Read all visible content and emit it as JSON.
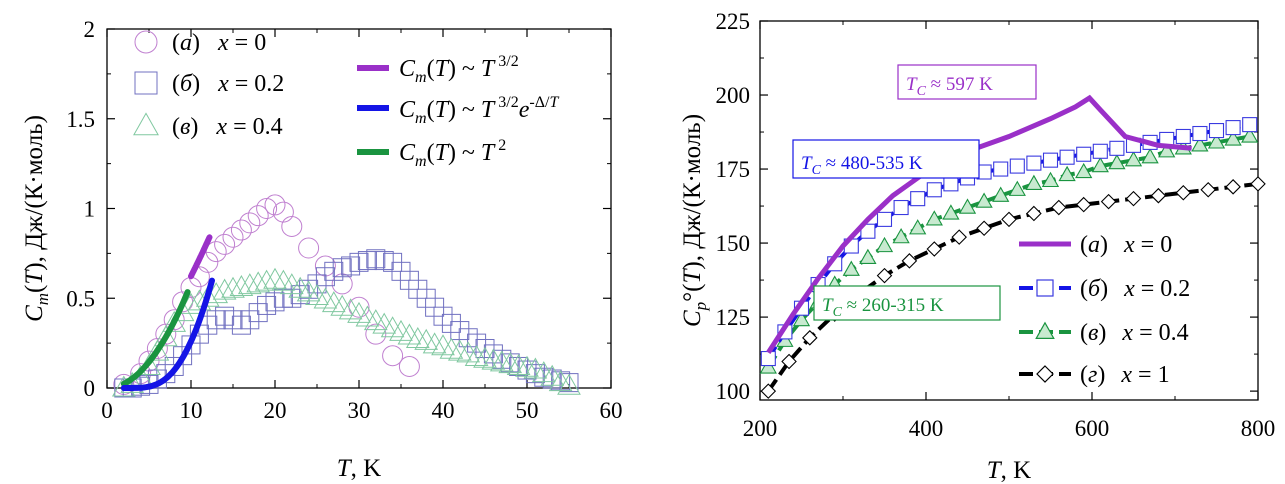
{
  "chart_data": [
    {
      "type": "scatter",
      "xlabel": "T, K",
      "ylabel": "C_m(T), Дж/(К·моль)",
      "xlim": [
        0,
        60
      ],
      "ylim": [
        0,
        2
      ],
      "xticks": [
        "0",
        "10",
        "20",
        "30",
        "40",
        "50",
        "60"
      ],
      "yticks": [
        "0",
        "0.5",
        "1",
        "1.5",
        "2"
      ],
      "legend_position": "top-left",
      "series": [
        {
          "name": "(а)  x = 0",
          "marker": "circle",
          "color": "#c080d0",
          "points": [
            [
              2,
              0.02
            ],
            [
              4,
              0.08
            ],
            [
              5,
              0.15
            ],
            [
              6,
              0.22
            ],
            [
              7,
              0.3
            ],
            [
              8,
              0.38
            ],
            [
              9,
              0.48
            ],
            [
              10,
              0.56
            ],
            [
              11,
              0.62
            ],
            [
              12,
              0.7
            ],
            [
              13,
              0.76
            ],
            [
              14,
              0.8
            ],
            [
              15,
              0.84
            ],
            [
              16,
              0.88
            ],
            [
              17,
              0.92
            ],
            [
              18,
              0.96
            ],
            [
              19,
              1.0
            ],
            [
              20,
              1.02
            ],
            [
              21,
              0.98
            ],
            [
              22,
              0.9
            ],
            [
              24,
              0.78
            ],
            [
              26,
              0.68
            ],
            [
              28,
              0.58
            ],
            [
              30,
              0.45
            ],
            [
              32,
              0.3
            ],
            [
              34,
              0.18
            ],
            [
              36,
              0.12
            ]
          ]
        },
        {
          "name": "(б)  x = 0.2",
          "marker": "square",
          "color": "#7070c0",
          "points": [
            [
              2,
              0.0
            ],
            [
              3,
              0.0
            ],
            [
              4,
              0.01
            ],
            [
              5,
              0.02
            ],
            [
              6,
              0.05
            ],
            [
              7,
              0.08
            ],
            [
              8,
              0.12
            ],
            [
              9,
              0.18
            ],
            [
              10,
              0.24
            ],
            [
              11,
              0.3
            ],
            [
              12,
              0.35
            ],
            [
              13,
              0.38
            ],
            [
              14,
              0.4
            ],
            [
              15,
              0.38
            ],
            [
              16,
              0.35
            ],
            [
              17,
              0.38
            ],
            [
              18,
              0.42
            ],
            [
              19,
              0.46
            ],
            [
              20,
              0.48
            ],
            [
              21,
              0.5
            ],
            [
              22,
              0.5
            ],
            [
              23,
              0.52
            ],
            [
              24,
              0.55
            ],
            [
              25,
              0.58
            ],
            [
              26,
              0.62
            ],
            [
              27,
              0.65
            ],
            [
              28,
              0.67
            ],
            [
              29,
              0.68
            ],
            [
              30,
              0.7
            ],
            [
              31,
              0.71
            ],
            [
              32,
              0.72
            ],
            [
              33,
              0.71
            ],
            [
              34,
              0.7
            ],
            [
              35,
              0.65
            ],
            [
              36,
              0.6
            ],
            [
              37,
              0.55
            ],
            [
              38,
              0.5
            ],
            [
              39,
              0.45
            ],
            [
              40,
              0.4
            ],
            [
              41,
              0.36
            ],
            [
              42,
              0.32
            ],
            [
              43,
              0.28
            ],
            [
              44,
              0.25
            ],
            [
              45,
              0.22
            ],
            [
              46,
              0.19
            ],
            [
              47,
              0.16
            ],
            [
              48,
              0.14
            ],
            [
              49,
              0.12
            ],
            [
              50,
              0.1
            ],
            [
              51,
              0.08
            ],
            [
              52,
              0.06
            ],
            [
              53,
              0.05
            ],
            [
              54,
              0.04
            ],
            [
              55,
              0.03
            ]
          ]
        },
        {
          "name": "(в)  x = 0.4",
          "marker": "triangle",
          "color": "#80c8a0",
          "points": [
            [
              2,
              0.0
            ],
            [
              3,
              0.02
            ],
            [
              4,
              0.06
            ],
            [
              5,
              0.12
            ],
            [
              6,
              0.2
            ],
            [
              7,
              0.28
            ],
            [
              8,
              0.36
            ],
            [
              9,
              0.42
            ],
            [
              10,
              0.46
            ],
            [
              11,
              0.48
            ],
            [
              12,
              0.5
            ],
            [
              13,
              0.52
            ],
            [
              14,
              0.54
            ],
            [
              15,
              0.55
            ],
            [
              16,
              0.56
            ],
            [
              17,
              0.57
            ],
            [
              18,
              0.58
            ],
            [
              19,
              0.59
            ],
            [
              20,
              0.6
            ],
            [
              21,
              0.59
            ],
            [
              22,
              0.57
            ],
            [
              23,
              0.55
            ],
            [
              24,
              0.53
            ],
            [
              25,
              0.51
            ],
            [
              26,
              0.49
            ],
            [
              27,
              0.47
            ],
            [
              28,
              0.45
            ],
            [
              29,
              0.43
            ],
            [
              30,
              0.41
            ],
            [
              31,
              0.39
            ],
            [
              32,
              0.37
            ],
            [
              33,
              0.35
            ],
            [
              34,
              0.33
            ],
            [
              35,
              0.31
            ],
            [
              36,
              0.29
            ],
            [
              37,
              0.27
            ],
            [
              38,
              0.26
            ],
            [
              39,
              0.24
            ],
            [
              40,
              0.23
            ],
            [
              41,
              0.21
            ],
            [
              42,
              0.2
            ],
            [
              43,
              0.19
            ],
            [
              44,
              0.17
            ],
            [
              45,
              0.16
            ],
            [
              46,
              0.15
            ],
            [
              47,
              0.14
            ],
            [
              48,
              0.13
            ],
            [
              49,
              0.12
            ],
            [
              50,
              0.11
            ],
            [
              51,
              0.1
            ],
            [
              52,
              0.08
            ],
            [
              53,
              0.06
            ],
            [
              54,
              0.03
            ],
            [
              55,
              0.01
            ]
          ]
        }
      ],
      "fits": [
        {
          "name": "C_m(T) ~ T^3/2",
          "color": "#9a30c8",
          "x": [
            10,
            12.2
          ],
          "k": 0.0197,
          "p": 1.5
        },
        {
          "name": "C_m(T) ~ T^3/2 e^-Δ/T",
          "color": "#1414e6",
          "x": [
            2,
            12.5
          ],
          "a": 0.1,
          "d": 25
        },
        {
          "name": "C_m(T) ~ T^2",
          "color": "#1a9440",
          "x": [
            2,
            9.6
          ],
          "k": 0.0058,
          "p": 2
        }
      ]
    },
    {
      "type": "line",
      "xlabel": "T, K",
      "ylabel": "C_p°(T), Дж/(К·моль)",
      "xlim": [
        200,
        800
      ],
      "ylim": [
        97,
        225
      ],
      "xticks": [
        "200",
        "400",
        "600",
        "800"
      ],
      "yticks": [
        "100",
        "125",
        "150",
        "175",
        "200",
        "225"
      ],
      "legend_position": "bottom-right",
      "series": [
        {
          "name": "(а)  x = 0",
          "color": "#9a30c8",
          "marker": "none",
          "points": [
            [
              210,
              113
            ],
            [
              240,
              126
            ],
            [
              270,
              138
            ],
            [
              300,
              149
            ],
            [
              330,
              158
            ],
            [
              360,
              166
            ],
            [
              400,
              174
            ],
            [
              450,
              181
            ],
            [
              500,
              186
            ],
            [
              550,
              192
            ],
            [
              580,
              196
            ],
            [
              597,
              199
            ],
            [
              610,
              195
            ],
            [
              640,
              186
            ],
            [
              680,
              183
            ],
            [
              720,
              182
            ]
          ]
        },
        {
          "name": "(б)  x = 0.2",
          "color": "#1414e6",
          "marker": "square",
          "points": [
            [
              210,
              111
            ],
            [
              230,
              120
            ],
            [
              250,
              128
            ],
            [
              270,
              136
            ],
            [
              290,
              143
            ],
            [
              310,
              149
            ],
            [
              330,
              154
            ],
            [
              350,
              158
            ],
            [
              370,
              162
            ],
            [
              390,
              165
            ],
            [
              410,
              168
            ],
            [
              430,
              170
            ],
            [
              450,
              172
            ],
            [
              470,
              174
            ],
            [
              490,
              175
            ],
            [
              510,
              176
            ],
            [
              530,
              177
            ],
            [
              550,
              178
            ],
            [
              570,
              179
            ],
            [
              590,
              180
            ],
            [
              610,
              181
            ],
            [
              630,
              182
            ],
            [
              650,
              183
            ],
            [
              670,
              184
            ],
            [
              690,
              185
            ],
            [
              710,
              186
            ],
            [
              730,
              187
            ],
            [
              750,
              188
            ],
            [
              770,
              189
            ],
            [
              790,
              190
            ]
          ]
        },
        {
          "name": "(в)  x = 0.4",
          "color": "#1a9440",
          "marker": "triangle",
          "points": [
            [
              210,
              108
            ],
            [
              230,
              117
            ],
            [
              250,
              124
            ],
            [
              270,
              130
            ],
            [
              290,
              136
            ],
            [
              310,
              141
            ],
            [
              330,
              145
            ],
            [
              350,
              149
            ],
            [
              370,
              152
            ],
            [
              390,
              155
            ],
            [
              410,
              158
            ],
            [
              430,
              160
            ],
            [
              450,
              162
            ],
            [
              470,
              164
            ],
            [
              490,
              166
            ],
            [
              510,
              168
            ],
            [
              530,
              170
            ],
            [
              550,
              171
            ],
            [
              570,
              173
            ],
            [
              590,
              174
            ],
            [
              610,
              176
            ],
            [
              630,
              177
            ],
            [
              650,
              178
            ],
            [
              670,
              179
            ],
            [
              690,
              181
            ],
            [
              710,
              182
            ],
            [
              730,
              183
            ],
            [
              750,
              184
            ],
            [
              770,
              185
            ],
            [
              790,
              186
            ]
          ]
        },
        {
          "name": "(г)  x = 1",
          "color": "#000000",
          "marker": "diamond",
          "points": [
            [
              210,
              100
            ],
            [
              235,
              110
            ],
            [
              260,
              118
            ],
            [
              290,
              126
            ],
            [
              320,
              133
            ],
            [
              350,
              139
            ],
            [
              380,
              144
            ],
            [
              410,
              148
            ],
            [
              440,
              152
            ],
            [
              470,
              155
            ],
            [
              500,
              158
            ],
            [
              530,
              160
            ],
            [
              560,
              162
            ],
            [
              590,
              163
            ],
            [
              620,
              164
            ],
            [
              650,
              165
            ],
            [
              680,
              166
            ],
            [
              710,
              167
            ],
            [
              740,
              168
            ],
            [
              770,
              169
            ],
            [
              800,
              170
            ]
          ]
        }
      ],
      "annotations": [
        {
          "text": "T_C ≈ 597 K",
          "color": "#9a30c8"
        },
        {
          "text": "T_C ≈ 480-535 K",
          "color": "#1414e6"
        },
        {
          "text": "T_C ≈ 260-315 K",
          "color": "#1a9440"
        }
      ]
    }
  ]
}
